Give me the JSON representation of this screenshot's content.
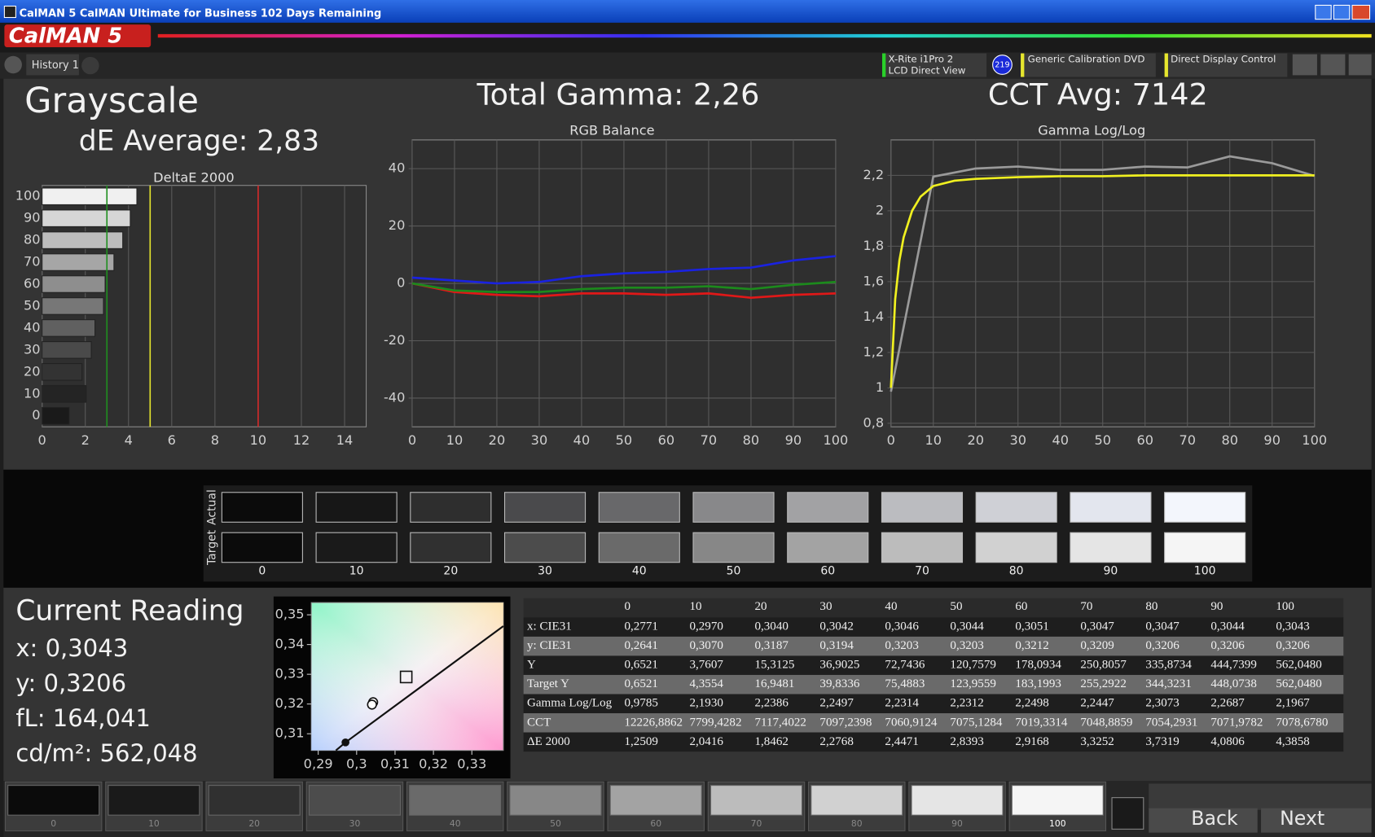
{
  "window": {
    "title": "CalMAN 5 CalMAN Ultimate for Business 102 Days Remaining"
  },
  "toolbar": {
    "logo": "CalMAN 5",
    "tab": "History 1",
    "meter": [
      "X-Rite i1Pro 2",
      "LCD Direct View"
    ],
    "meter_badge": "219",
    "source": "Generic Calibration DVD",
    "display": "Direct Display Control"
  },
  "summary": {
    "title": "Grayscale",
    "de_average": "dE Average: 2,83",
    "gamma": "Total Gamma: 2,26",
    "cct": "CCT Avg: 7142"
  },
  "chart_data": [
    {
      "type": "hbar",
      "title": "DeltaE 2000",
      "categories": [
        0,
        10,
        20,
        30,
        40,
        50,
        60,
        70,
        80,
        90,
        100
      ],
      "values": [
        1.2509,
        2.0416,
        1.8462,
        2.2768,
        2.4471,
        2.8393,
        2.9168,
        3.3252,
        3.7319,
        4.0806,
        4.3858
      ],
      "bar_colors": [
        "#1a1a1a",
        "#242424",
        "#333333",
        "#4a4a4a",
        "#606060",
        "#777777",
        "#8e8e8e",
        "#a6a6a6",
        "#bdbdbd",
        "#d6d6d6",
        "#f0f0f0"
      ],
      "xlim": [
        0,
        15
      ],
      "xticks": [
        0,
        2,
        4,
        6,
        8,
        10,
        12,
        14
      ],
      "grid": true,
      "thresholds": [
        {
          "value": 3,
          "color": "#1f8f1f"
        },
        {
          "value": 5,
          "color": "#e6e62e"
        },
        {
          "value": 10,
          "color": "#d42a2a"
        }
      ]
    },
    {
      "type": "line",
      "title": "RGB Balance",
      "x": [
        0,
        10,
        20,
        30,
        40,
        50,
        60,
        70,
        80,
        90,
        100
      ],
      "series": [
        {
          "color": "#e01818",
          "values": [
            0,
            -3,
            -4,
            -4.5,
            -3.5,
            -3.5,
            -4,
            -3.5,
            -5,
            -4,
            -3.5
          ]
        },
        {
          "color": "#1c8a1c",
          "values": [
            0,
            -2.5,
            -3,
            -3,
            -2,
            -1.5,
            -1.5,
            -1,
            -2,
            -0.5,
            0.5
          ]
        },
        {
          "color": "#1a22e0",
          "values": [
            2,
            1,
            0,
            0.5,
            2.5,
            3.5,
            4,
            5,
            5.5,
            8,
            9.5
          ]
        }
      ],
      "xlim": [
        0,
        100
      ],
      "xticks": [
        0,
        10,
        20,
        30,
        40,
        50,
        60,
        70,
        80,
        90,
        100
      ],
      "ylim": [
        -50,
        50
      ],
      "yticks": [
        -40,
        -20,
        0,
        20,
        40
      ],
      "grid": true
    },
    {
      "type": "line",
      "title": "Gamma Log/Log",
      "x": [
        0,
        10,
        20,
        30,
        40,
        50,
        60,
        70,
        80,
        90,
        100
      ],
      "series": [
        {
          "color": "#9a9a9a",
          "values": [
            0.9785,
            2.193,
            2.2386,
            2.2497,
            2.2314,
            2.2312,
            2.2498,
            2.2447,
            2.3073,
            2.2687,
            2.1967
          ]
        },
        {
          "color": "#f0f020",
          "x": [
            0,
            1,
            2,
            3,
            5,
            7,
            10,
            15,
            20,
            30,
            40,
            50,
            60,
            70,
            80,
            90,
            100
          ],
          "values": [
            1,
            1.5,
            1.72,
            1.85,
            2.0,
            2.08,
            2.14,
            2.17,
            2.18,
            2.19,
            2.195,
            2.195,
            2.2,
            2.2,
            2.2,
            2.2,
            2.2
          ]
        }
      ],
      "xlim": [
        0,
        100
      ],
      "xticks": [
        0,
        10,
        20,
        30,
        40,
        50,
        60,
        70,
        80,
        90,
        100
      ],
      "ylim": [
        0.78,
        2.4
      ],
      "yticks": [
        {
          "value": 0.8,
          "label": "0,8"
        },
        1,
        {
          "value": 1.2,
          "label": "1,2"
        },
        {
          "value": 1.4,
          "label": "1,4"
        },
        {
          "value": 1.6,
          "label": "1,6"
        },
        {
          "value": 1.8,
          "label": "1,8"
        },
        2,
        {
          "value": 2.2,
          "label": "2,2"
        }
      ],
      "grid": true
    },
    {
      "type": "scatter",
      "series": [
        {
          "marker": "line",
          "color": "#111111",
          "x": [
            0.2946,
            0.2971,
            0.3382
          ],
          "values": [
            0.3044,
            0.3071,
            0.3462
          ]
        },
        {
          "marker": "dot",
          "color": "#111111",
          "x": [
            0.2971
          ],
          "values": [
            0.3071
          ]
        },
        {
          "marker": "square",
          "color": "#111111",
          "x": [
            0.3129
          ],
          "values": [
            0.3291
          ]
        },
        {
          "marker": "circle",
          "color": "#111111",
          "x": [
            0.3043,
            0.304
          ],
          "values": [
            0.3206,
            0.3198
          ]
        }
      ],
      "xlim": [
        0.2882,
        0.3382
      ],
      "xticks": [
        {
          "value": 0.29,
          "label": "0,29"
        },
        {
          "value": 0.3,
          "label": "0,3"
        },
        {
          "value": 0.31,
          "label": "0,31"
        },
        {
          "value": 0.32,
          "label": "0,32"
        },
        {
          "value": 0.33,
          "label": "0,33"
        }
      ],
      "ylim": [
        0.3044,
        0.3541
      ],
      "yticks": [
        {
          "value": 0.31,
          "label": "0,31"
        },
        {
          "value": 0.32,
          "label": "0,32"
        },
        {
          "value": 0.33,
          "label": "0,33"
        },
        {
          "value": 0.34,
          "label": "0,34"
        },
        {
          "value": 0.35,
          "label": "0,35"
        }
      ],
      "grid": false
    }
  ],
  "swatches": {
    "rows": [
      "Actual",
      "Target"
    ],
    "labels": [
      "0",
      "10",
      "20",
      "30",
      "40",
      "50",
      "60",
      "70",
      "80",
      "90",
      "100"
    ],
    "actual_colors": [
      "#0b0b0b",
      "#171717",
      "#2e2e2e",
      "#4a4a4c",
      "#68686a",
      "#88888a",
      "#a2a2a4",
      "#bbbcc0",
      "#cfd0d6",
      "#e3e6ee",
      "#f3f6fc"
    ],
    "target_colors": [
      "#0b0b0b",
      "#1a1a1a",
      "#303030",
      "#4c4c4c",
      "#6a6a6a",
      "#878787",
      "#a3a3a3",
      "#bcbcbc",
      "#d1d1d1",
      "#e5e5e5",
      "#f5f5f5"
    ]
  },
  "reading": {
    "title": "Current Reading",
    "lines": [
      "x: 0,3043",
      "y: 0,3206",
      "fL: 164,041",
      "cd/m²: 562,048"
    ]
  },
  "table": {
    "header": [
      "0",
      "10",
      "20",
      "30",
      "40",
      "50",
      "60",
      "70",
      "80",
      "90",
      "100"
    ],
    "rows": [
      [
        "x: CIE31",
        "0,2771",
        "0,2970",
        "0,3040",
        "0,3042",
        "0,3046",
        "0,3044",
        "0,3051",
        "0,3047",
        "0,3047",
        "0,3044",
        "0,3043"
      ],
      [
        "y: CIE31",
        "0,2641",
        "0,3070",
        "0,3187",
        "0,3194",
        "0,3203",
        "0,3203",
        "0,3212",
        "0,3209",
        "0,3206",
        "0,3206",
        "0,3206"
      ],
      [
        "Y",
        "0,6521",
        "3,7607",
        "15,3125",
        "36,9025",
        "72,7436",
        "120,7579",
        "178,0934",
        "250,8057",
        "335,8734",
        "444,7399",
        "562,0480"
      ],
      [
        "Target Y",
        "0,6521",
        "4,3554",
        "16,9481",
        "39,8336",
        "75,4883",
        "123,9559",
        "183,1993",
        "255,2922",
        "344,3231",
        "448,0738",
        "562,0480"
      ],
      [
        "Gamma Log/Log",
        "0,9785",
        "2,1930",
        "2,2386",
        "2,2497",
        "2,2314",
        "2,2312",
        "2,2498",
        "2,2447",
        "2,3073",
        "2,2687",
        "2,1967"
      ],
      [
        "CCT",
        "12226,8862",
        "7799,4282",
        "7117,4022",
        "7097,2398",
        "7060,9124",
        "7075,1284",
        "7019,3314",
        "7048,8859",
        "7054,2931",
        "7071,9782",
        "7078,6780"
      ],
      [
        "ΔE 2000",
        "1,2509",
        "2,0416",
        "1,8462",
        "2,2768",
        "2,4471",
        "2,8393",
        "2,9168",
        "3,3252",
        "3,7319",
        "4,0806",
        "4,3858"
      ]
    ]
  },
  "footer": {
    "steps": [
      "0",
      "10",
      "20",
      "30",
      "40",
      "50",
      "60",
      "70",
      "80",
      "90",
      "100"
    ],
    "back": "Back",
    "next": "Next"
  }
}
